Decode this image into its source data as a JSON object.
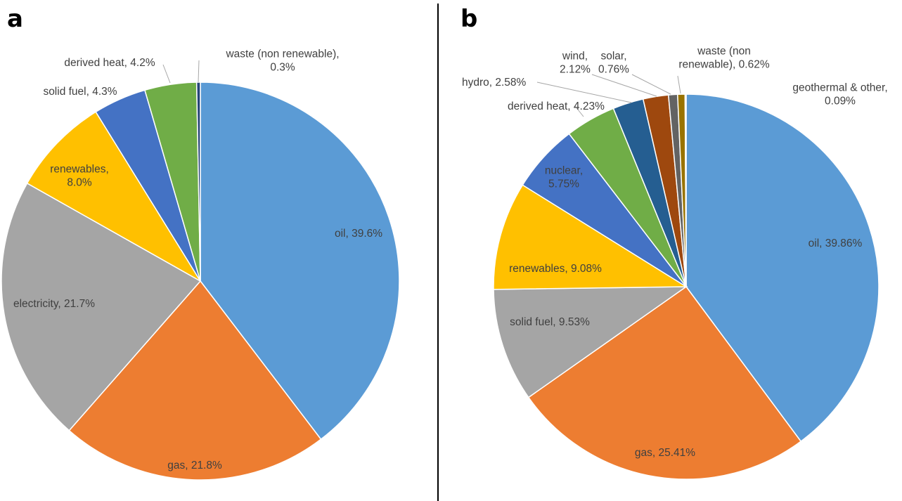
{
  "panels": {
    "a": {
      "letter": "a"
    },
    "b": {
      "letter": "b"
    }
  },
  "chart_data": [
    {
      "type": "pie",
      "title": "",
      "slices": [
        {
          "name": "oil",
          "value": 39.6,
          "label": [
            "oil, 39.6%"
          ],
          "color": "#5B9BD5"
        },
        {
          "name": "gas",
          "value": 21.8,
          "label": [
            "gas, 21.8%"
          ],
          "color": "#ED7D31"
        },
        {
          "name": "electricity",
          "value": 21.7,
          "label": [
            "electricity, 21.7%"
          ],
          "color": "#A5A5A5"
        },
        {
          "name": "renewables",
          "value": 8.0,
          "label": [
            "renewables,",
            "8.0%"
          ],
          "color": "#FFC000"
        },
        {
          "name": "solid fuel",
          "value": 4.3,
          "label": [
            "solid fuel, 4.3%"
          ],
          "color": "#4472C4"
        },
        {
          "name": "derived heat",
          "value": 4.2,
          "label": [
            "derived heat, 4.2%"
          ],
          "color": "#70AD47"
        },
        {
          "name": "waste (non renewable)",
          "value": 0.3,
          "label": [
            "waste (non renewable),",
            "0.3%"
          ],
          "color": "#264478"
        }
      ]
    },
    {
      "type": "pie",
      "title": "",
      "slices": [
        {
          "name": "oil",
          "value": 39.86,
          "label": [
            "oil, 39.86%"
          ],
          "color": "#5B9BD5"
        },
        {
          "name": "gas",
          "value": 25.41,
          "label": [
            "gas, 25.41%"
          ],
          "color": "#ED7D31"
        },
        {
          "name": "solid fuel",
          "value": 9.53,
          "label": [
            "solid fuel, 9.53%"
          ],
          "color": "#A5A5A5"
        },
        {
          "name": "renewables",
          "value": 9.08,
          "label": [
            "renewables, 9.08%"
          ],
          "color": "#FFC000"
        },
        {
          "name": "nuclear",
          "value": 5.75,
          "label": [
            "nuclear,",
            "5.75%"
          ],
          "color": "#4472C4"
        },
        {
          "name": "derived heat",
          "value": 4.23,
          "label": [
            "derived heat, 4.23%"
          ],
          "color": "#70AD47"
        },
        {
          "name": "hydro",
          "value": 2.58,
          "label": [
            "hydro, 2.58%"
          ],
          "color": "#255E91"
        },
        {
          "name": "wind",
          "value": 2.12,
          "label": [
            "wind,",
            "2.12%"
          ],
          "color": "#9E480E"
        },
        {
          "name": "solar",
          "value": 0.76,
          "label": [
            "solar,",
            "0.76%"
          ],
          "color": "#636363"
        },
        {
          "name": "waste (non renewable)",
          "value": 0.62,
          "label": [
            "waste (non",
            "renewable), 0.62%"
          ],
          "color": "#997300"
        },
        {
          "name": "geothermal & other",
          "value": 0.09,
          "label": [
            "geothermal & other,",
            "0.09%"
          ],
          "color": "#264478"
        }
      ]
    }
  ]
}
